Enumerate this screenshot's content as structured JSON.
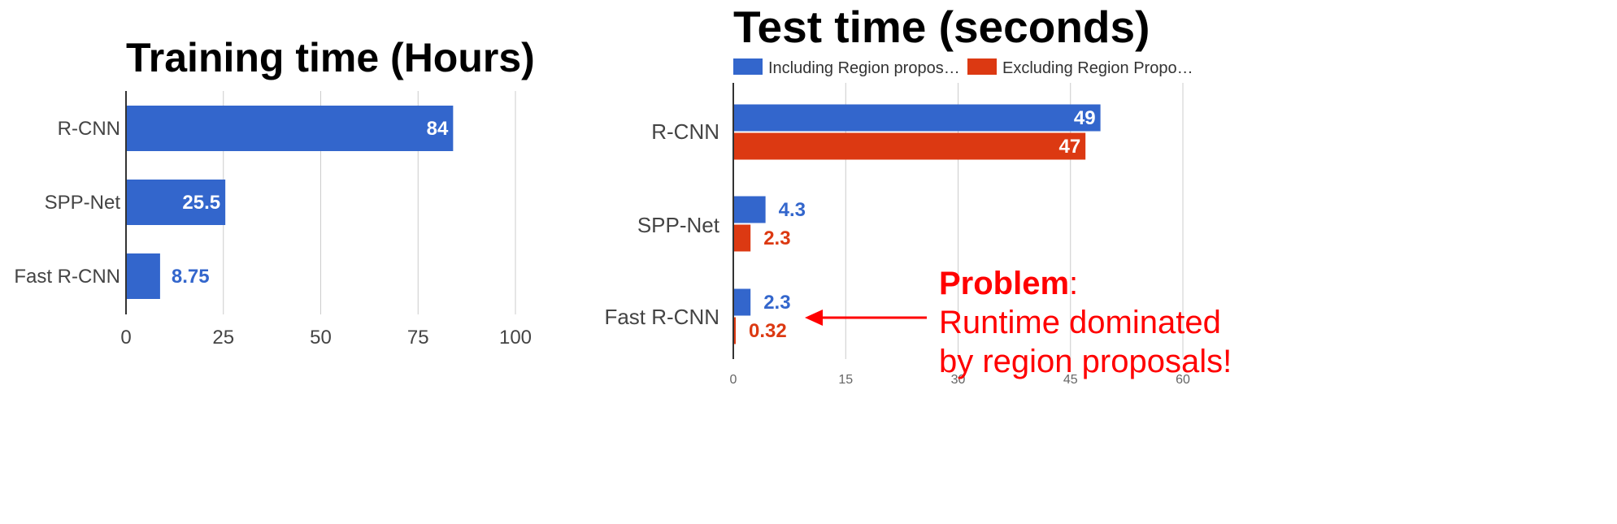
{
  "colors": {
    "blue": "#3366cc",
    "red": "#dc3912",
    "grid": "#cccccc",
    "axis": "#333333",
    "tick_text": "#444444",
    "annotation": "#ff0000"
  },
  "chart_data": [
    {
      "type": "bar",
      "orientation": "horizontal",
      "title": "Training time (Hours)",
      "categories": [
        "R-CNN",
        "SPP-Net",
        "Fast R-CNN"
      ],
      "series": [
        {
          "values": [
            84,
            25.5,
            8.75
          ],
          "labels": [
            "84",
            "25.5",
            "8.75"
          ]
        }
      ],
      "xlim": [
        0,
        100
      ],
      "xticks": [
        "0",
        "25",
        "50",
        "75",
        "100"
      ],
      "grid": true
    },
    {
      "type": "bar",
      "orientation": "horizontal",
      "title": "Test time (seconds)",
      "categories": [
        "R-CNN",
        "SPP-Net",
        "Fast R-CNN"
      ],
      "series": [
        {
          "name": "Including Region propos…",
          "values": [
            49,
            4.3,
            2.3
          ],
          "labels": [
            "49",
            "4.3",
            "2.3"
          ]
        },
        {
          "name": "Excluding Region Propo…",
          "values": [
            47,
            2.3,
            0.32
          ],
          "labels": [
            "47",
            "2.3",
            "0.32"
          ]
        }
      ],
      "xlim": [
        0,
        63
      ],
      "xticks": [
        "0",
        "15",
        "30",
        "45",
        "60"
      ],
      "legend": "top",
      "grid": true
    }
  ],
  "annotation": {
    "bold": "Problem",
    "colon": ":",
    "line2": "Runtime dominated",
    "line3": "by region proposals!"
  }
}
